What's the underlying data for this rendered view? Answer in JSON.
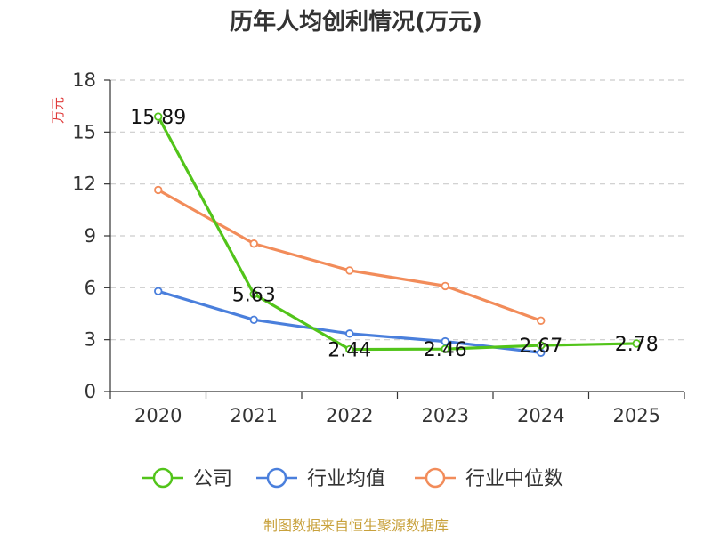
{
  "chart_data": {
    "type": "line",
    "title": "历年人均创利情况(万元)",
    "ylabel": "万元",
    "xlabel": "",
    "categories": [
      "2020",
      "2021",
      "2022",
      "2023",
      "2024",
      "2025"
    ],
    "ylim": [
      0,
      18
    ],
    "yticks": [
      0,
      3,
      6,
      9,
      12,
      15,
      18
    ],
    "grid": true,
    "legend_position": "bottom",
    "series": [
      {
        "name": "公司",
        "color": "#52c41a",
        "values": [
          15.89,
          5.63,
          2.44,
          2.46,
          2.67,
          2.78
        ],
        "labels": [
          "15.89",
          "5.63",
          "2.44",
          "2.46",
          "2.67",
          "2.78"
        ]
      },
      {
        "name": "行业均值",
        "color": "#4a7fdc",
        "values": [
          5.8,
          4.15,
          3.35,
          2.9,
          2.25,
          null
        ]
      },
      {
        "name": "行业中位数",
        "color": "#f28c5a",
        "values": [
          11.65,
          8.55,
          7.0,
          6.1,
          4.1,
          null
        ]
      }
    ]
  },
  "source_text": "制图数据来自恒生聚源数据库",
  "colors": {
    "ylabel": "#e03c3c",
    "source": "#c8a13c",
    "axis": "#333333",
    "grid": "#cccccc"
  }
}
